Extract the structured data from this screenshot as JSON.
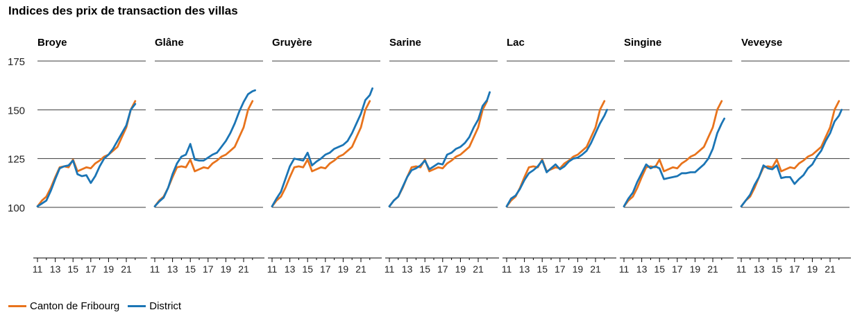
{
  "title": "Indices des prix de transaction des villas",
  "colors": {
    "canton": "#e8731c",
    "district": "#1b75b5",
    "grid": "#3a3a3a"
  },
  "legend": [
    {
      "name": "Canton de Fribourg",
      "color": "#e8731c"
    },
    {
      "name": "District",
      "color": "#1b75b5"
    }
  ],
  "chart_data": {
    "type": "line",
    "ylim": [
      100,
      175
    ],
    "yticks": [
      100,
      125,
      150,
      175
    ],
    "y_gridlines": [
      100,
      125,
      150,
      175
    ],
    "xlim": [
      11,
      22.5
    ],
    "xticks": [
      11,
      13,
      15,
      17,
      19,
      21
    ],
    "canton": {
      "name": "Canton de Fribourg",
      "x": [
        11,
        11.5,
        12,
        12.5,
        13,
        13.5,
        14,
        14.5,
        15,
        15.5,
        16,
        16.5,
        17,
        17.5,
        18,
        18.5,
        19,
        19.5,
        20,
        20.5,
        21,
        21.5,
        22
      ],
      "values": [
        100.5,
        103.5,
        105.5,
        110,
        115.5,
        120.5,
        121,
        120.5,
        124.5,
        118.5,
        119.5,
        120.5,
        120,
        122.5,
        124,
        126,
        127,
        129,
        131,
        136,
        141,
        150,
        154.5
      ]
    },
    "panels": [
      {
        "name": "Broye",
        "district_x": [
          11,
          11.5,
          12,
          12.5,
          13,
          13.5,
          14,
          14.5,
          15,
          15.5,
          16,
          16.5,
          17,
          17.5,
          18,
          18.5,
          19,
          19.5,
          20,
          20.5,
          21,
          21.5,
          22
        ],
        "district": [
          100.5,
          102,
          103.5,
          108.5,
          114.5,
          120,
          121,
          121.5,
          124,
          117,
          116,
          116.5,
          112.5,
          116,
          121,
          125,
          127,
          130,
          134,
          138,
          142,
          150,
          153
        ]
      },
      {
        "name": "Glâne",
        "district_x": [
          11,
          11.5,
          12,
          12.5,
          13,
          13.5,
          14,
          14.5,
          15,
          15.5,
          16,
          16.5,
          17,
          17.5,
          18,
          18.5,
          19,
          19.5,
          20,
          20.5,
          21,
          21.5,
          22,
          22.3
        ],
        "district": [
          100.5,
          103,
          105,
          110,
          117,
          122.5,
          126,
          127,
          132.5,
          124.5,
          124,
          124,
          125.5,
          127,
          128,
          131,
          134,
          138,
          143,
          149,
          154,
          158,
          159.5,
          160
        ]
      },
      {
        "name": "Gruyère",
        "district_x": [
          11,
          11.5,
          12,
          12.5,
          13,
          13.5,
          14,
          14.5,
          15,
          15.5,
          16,
          16.5,
          17,
          17.5,
          18,
          18.5,
          19,
          19.5,
          20,
          20.5,
          21,
          21.5,
          22,
          22.3
        ],
        "district": [
          100.5,
          104.5,
          108,
          114.5,
          121,
          125,
          124.5,
          124,
          128,
          121.5,
          123.5,
          125,
          127,
          128,
          130,
          131,
          132,
          134,
          138,
          143,
          148,
          155,
          157.5,
          161
        ]
      },
      {
        "name": "Sarine",
        "district_x": [
          11,
          11.5,
          12,
          12.5,
          13,
          13.5,
          14,
          14.5,
          15,
          15.5,
          16,
          16.5,
          17,
          17.5,
          18,
          18.5,
          19,
          19.5,
          20,
          20.5,
          21,
          21.5,
          22,
          22.3
        ],
        "district": [
          100.5,
          103.5,
          105.5,
          110.5,
          115.5,
          119,
          120,
          121.5,
          124,
          119.5,
          121,
          122.5,
          122,
          127,
          128,
          130,
          131,
          133,
          136,
          141,
          145,
          152,
          155,
          159
        ]
      },
      {
        "name": "Lac",
        "district_x": [
          11,
          11.5,
          12,
          12.5,
          13,
          13.5,
          14,
          14.5,
          15,
          15.5,
          16,
          16.5,
          17,
          17.5,
          18,
          18.5,
          19,
          19.5,
          20,
          20.5,
          21,
          21.5,
          22,
          22.3
        ],
        "district": [
          100.5,
          104.5,
          106,
          109.5,
          114,
          117.5,
          119,
          121,
          124,
          118,
          120,
          122,
          119.5,
          121,
          123.5,
          125,
          125.5,
          127,
          129,
          133,
          138,
          143,
          147,
          150
        ]
      },
      {
        "name": "Singine",
        "district_x": [
          11,
          11.5,
          12,
          12.5,
          13,
          13.5,
          14,
          14.5,
          15,
          15.5,
          16,
          16.5,
          17,
          17.5,
          18,
          18.5,
          19,
          19.5,
          20,
          20.5,
          21,
          21.5,
          22,
          22.3
        ],
        "district": [
          100.5,
          104.5,
          107.5,
          113,
          117.5,
          122,
          120,
          121,
          120,
          114.5,
          115,
          115.5,
          116,
          117.5,
          117.5,
          118,
          118,
          120,
          122,
          125,
          130,
          138,
          143,
          145.5
        ]
      },
      {
        "name": "Veveyse",
        "district_x": [
          11,
          11.5,
          12,
          12.5,
          13,
          13.5,
          14,
          14.5,
          15,
          15.5,
          16,
          16.5,
          17,
          17.5,
          18,
          18.5,
          19,
          19.5,
          20,
          20.5,
          21,
          21.5,
          22,
          22.3
        ],
        "district": [
          100.5,
          103.5,
          106.5,
          111.5,
          115.5,
          121.5,
          120,
          119.5,
          121.5,
          115,
          115.5,
          115.5,
          112,
          114.5,
          116.5,
          120,
          122,
          126,
          129,
          134,
          138,
          144,
          147,
          150
        ]
      }
    ]
  }
}
